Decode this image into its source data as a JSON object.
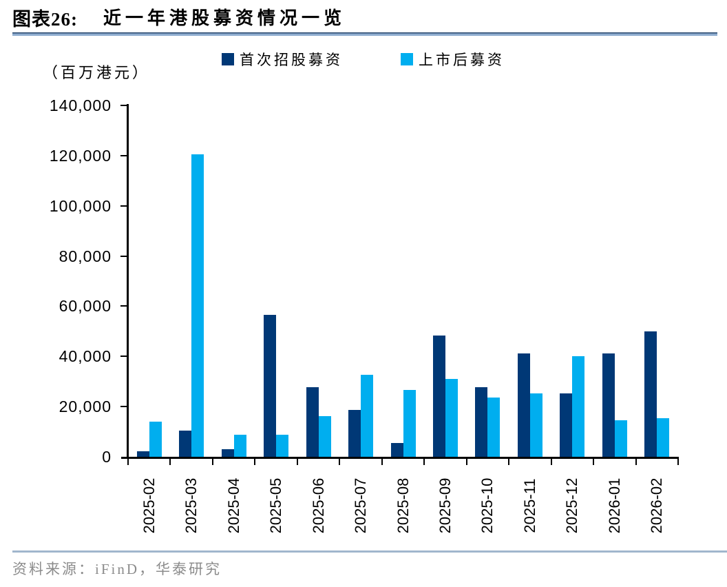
{
  "header": {
    "figure_label": "图表26:",
    "title": "近一年港股募资情况一览"
  },
  "unit_label": "（百万港元）",
  "chart_data": {
    "type": "bar",
    "title": "近一年港股募资情况一览",
    "unit": "百万港元",
    "categories": [
      "2025-02",
      "2025-03",
      "2025-04",
      "2025-05",
      "2025-06",
      "2025-07",
      "2025-08",
      "2025-09",
      "2025-10",
      "2025-11",
      "2025-12",
      "2026-01",
      "2026-02"
    ],
    "series": [
      {
        "name": "首次招股募资",
        "color": "#003876",
        "values": [
          2300,
          10300,
          3100,
          56500,
          27800,
          18700,
          5400,
          48200,
          27800,
          41100,
          25300,
          41100,
          50000
        ]
      },
      {
        "name": "上市后募资",
        "color": "#00AEEF",
        "values": [
          13900,
          120500,
          8900,
          8900,
          16100,
          32700,
          26700,
          31100,
          23700,
          25300,
          40000,
          14500,
          15500
        ]
      }
    ],
    "ylim": [
      0,
      140000
    ],
    "ytick_step": 20000,
    "ytick_labels": [
      "0",
      "20,000",
      "40,000",
      "60,000",
      "80,000",
      "100,000",
      "120,000",
      "140,000"
    ],
    "legend_position": "top",
    "grid": false
  },
  "footer": {
    "source": "资料来源：iFinD，华泰研究"
  }
}
